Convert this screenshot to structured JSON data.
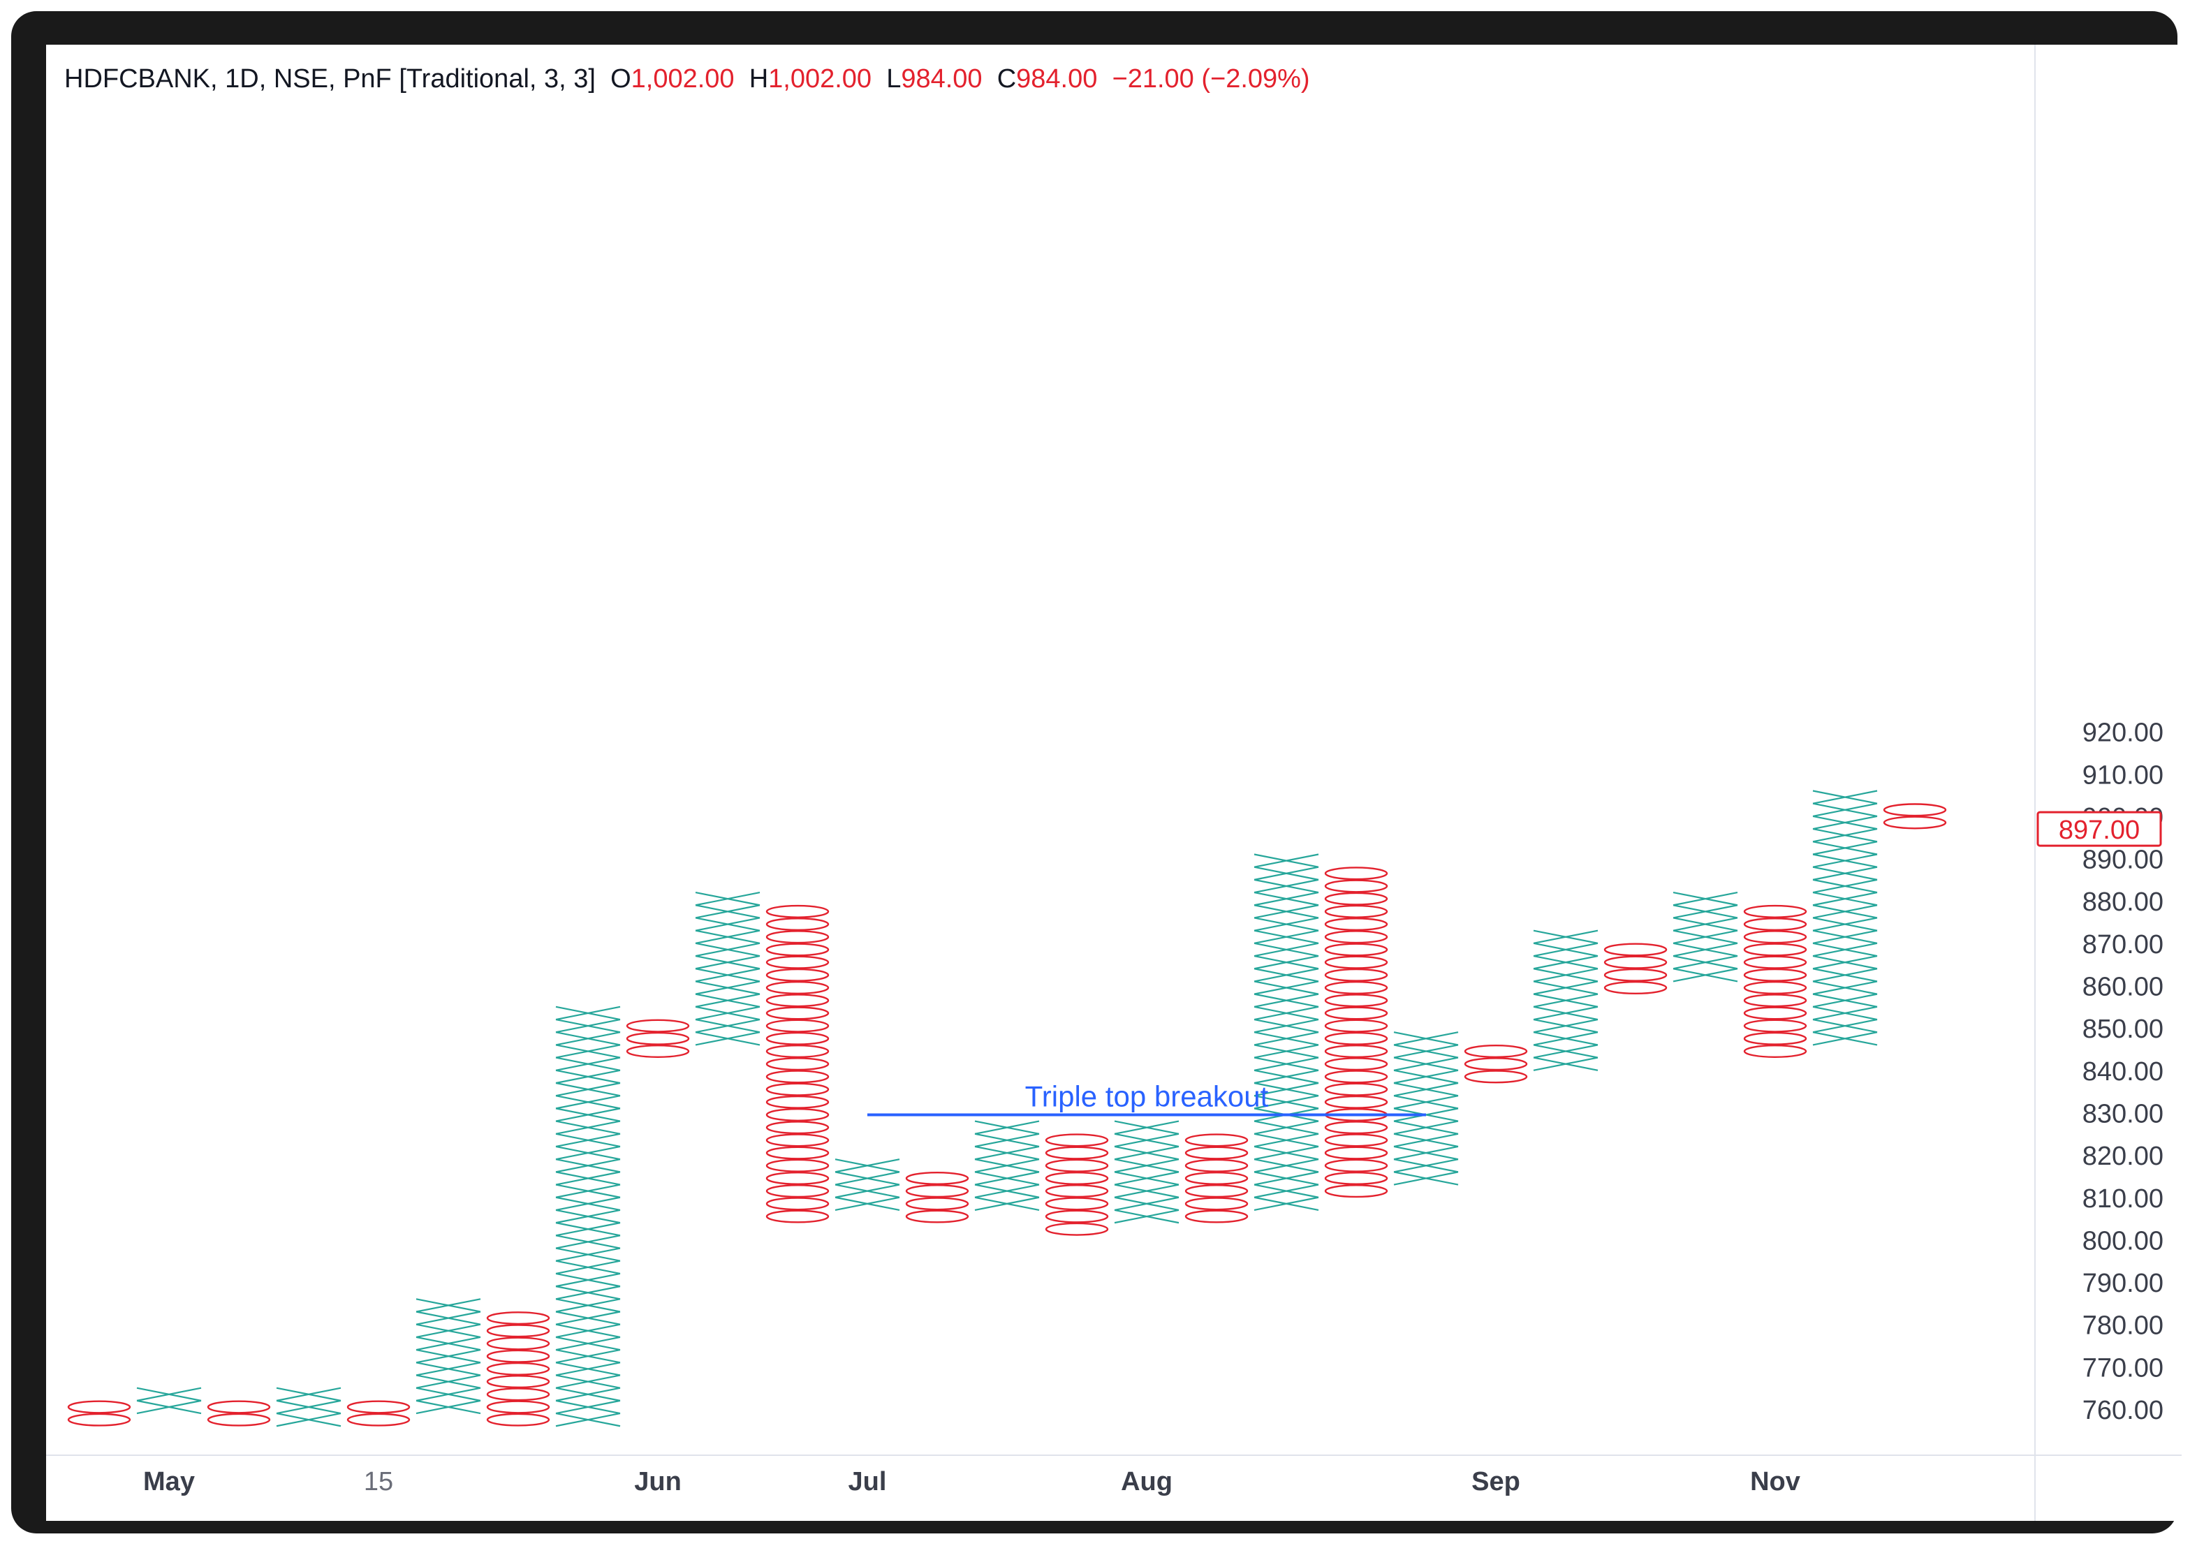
{
  "legend": {
    "symbol_info": "HDFCBANK, 1D, NSE, PnF [Traditional, 3, 3]",
    "o_label": "O",
    "o_value": "1,002.00",
    "h_label": "H",
    "h_value": "1,002.00",
    "l_label": "L",
    "l_value": "984.00",
    "c_label": "C",
    "c_value": "984.00",
    "change": "−21.00 (−2.09%)"
  },
  "price_badge": "897.00",
  "annotation": "Triple top breakout",
  "colors": {
    "x_color": "#26a69a",
    "o_color": "#e3212d",
    "annotation_color": "#2962ff",
    "axis_text": "#131722",
    "grid_line": "#e0e3eb"
  },
  "chart_data": {
    "type": "point-and-figure",
    "box_size": 3,
    "reversal": 3,
    "ylim": [
      757,
      922
    ],
    "y_ticks": [
      "760.00",
      "770.00",
      "780.00",
      "790.00",
      "800.00",
      "810.00",
      "820.00",
      "830.00",
      "840.00",
      "850.00",
      "860.00",
      "870.00",
      "880.00",
      "890.00",
      "900.00",
      "910.00",
      "920.00"
    ],
    "x_ticks": [
      {
        "label": "May",
        "column": 1,
        "bold": true
      },
      {
        "label": "15",
        "column": 4,
        "bold": false
      },
      {
        "label": "Jun",
        "column": 8,
        "bold": true
      },
      {
        "label": "Jul",
        "column": 11,
        "bold": true
      },
      {
        "label": "Aug",
        "column": 15,
        "bold": true
      },
      {
        "label": "Sep",
        "column": 20,
        "bold": true
      },
      {
        "label": "Nov",
        "column": 24,
        "bold": true
      }
    ],
    "columns": [
      {
        "type": "O",
        "low": 756,
        "high": 762
      },
      {
        "type": "X",
        "low": 759,
        "high": 765
      },
      {
        "type": "O",
        "low": 756,
        "high": 762
      },
      {
        "type": "X",
        "low": 756,
        "high": 765
      },
      {
        "type": "O",
        "low": 756,
        "high": 762
      },
      {
        "type": "X",
        "low": 759,
        "high": 786
      },
      {
        "type": "O",
        "low": 756,
        "high": 783
      },
      {
        "type": "X",
        "low": 756,
        "high": 855
      },
      {
        "type": "O",
        "low": 843,
        "high": 852
      },
      {
        "type": "X",
        "low": 846,
        "high": 882
      },
      {
        "type": "O",
        "low": 804,
        "high": 879
      },
      {
        "type": "X",
        "low": 807,
        "high": 819
      },
      {
        "type": "O",
        "low": 804,
        "high": 816
      },
      {
        "type": "X",
        "low": 807,
        "high": 828
      },
      {
        "type": "O",
        "low": 801,
        "high": 825
      },
      {
        "type": "X",
        "low": 804,
        "high": 828
      },
      {
        "type": "O",
        "low": 804,
        "high": 825
      },
      {
        "type": "X",
        "low": 807,
        "high": 891
      },
      {
        "type": "O",
        "low": 810,
        "high": 888
      },
      {
        "type": "X",
        "low": 813,
        "high": 849
      },
      {
        "type": "O",
        "low": 837,
        "high": 846
      },
      {
        "type": "X",
        "low": 840,
        "high": 873
      },
      {
        "type": "O",
        "low": 858,
        "high": 870
      },
      {
        "type": "X",
        "low": 861,
        "high": 882
      },
      {
        "type": "O",
        "low": 843,
        "high": 879
      },
      {
        "type": "X",
        "low": 846,
        "high": 906
      },
      {
        "type": "O",
        "low": 897,
        "high": 903
      }
    ],
    "annotation_line": {
      "price": 829.5,
      "from_column": 11,
      "to_column": 19
    }
  }
}
